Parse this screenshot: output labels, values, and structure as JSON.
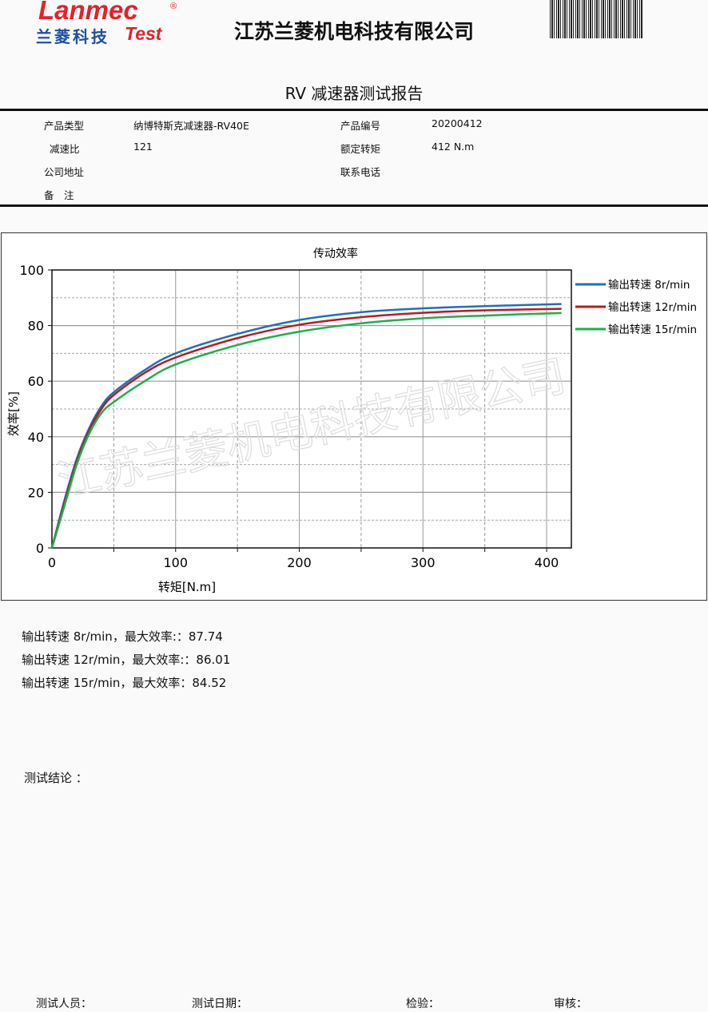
{
  "logo": {
    "brand": "Lanmec",
    "registered": "®",
    "cn": "兰菱科技",
    "test": "Test"
  },
  "header": {
    "company": "江苏兰菱机电科技有限公司",
    "report_title": "RV 减速器测试报告"
  },
  "info": [
    {
      "label": "产品类型",
      "value": "纳博特斯克减速器-RV40E",
      "label2": "产品编号",
      "value2": "20200412"
    },
    {
      "label": "减速比",
      "value": "121",
      "label2": "额定转矩",
      "value2": "412 N.m"
    },
    {
      "label": "公司地址",
      "value": "",
      "label2": "联系电话",
      "value2": ""
    },
    {
      "label": "备　注",
      "value": "",
      "label2": "",
      "value2": ""
    }
  ],
  "watermark": "江苏兰菱机电科技有限公司",
  "chart_data": {
    "type": "line",
    "title": "传动效率",
    "xlabel": "转矩[N.m]",
    "ylabel": "效率[%]",
    "xlim": [
      0,
      420
    ],
    "ylim": [
      0,
      100
    ],
    "xticks": [
      0,
      100,
      200,
      300,
      400
    ],
    "yticks": [
      0,
      20,
      40,
      60,
      80,
      100
    ],
    "grid": true,
    "legend": "top-right",
    "x": [
      0,
      10,
      20,
      30,
      40,
      50,
      75,
      100,
      150,
      200,
      250,
      300,
      350,
      412
    ],
    "series": [
      {
        "name": "输出转速 8r/min",
        "color": "#1f6fc0",
        "values": [
          0,
          17,
          32,
          43,
          51,
          56,
          64,
          70,
          77,
          82,
          84.8,
          86.2,
          87,
          87.74
        ]
      },
      {
        "name": "输出转速 12r/min",
        "color": "#c0161c",
        "values": [
          0,
          16,
          31,
          42,
          50,
          55,
          63,
          68.5,
          75.5,
          80.3,
          83,
          84.6,
          85.5,
          86.01
        ]
      },
      {
        "name": "输出转速 15r/min",
        "color": "#1fae4a",
        "values": [
          0,
          15,
          30,
          41,
          48.5,
          52.5,
          60,
          66,
          73,
          77.8,
          80.8,
          82.6,
          83.6,
          84.52
        ]
      }
    ]
  },
  "results": [
    "输出转速 8r/min，最大效率:：87.74",
    "输出转速 12r/min，最大效率:：86.01",
    "输出转速 15r/min，最大效率：84.52"
  ],
  "conclusion": "测试结论 ：",
  "footer": {
    "tester": "测试人员：",
    "date": "测试日期：",
    "inspect": "检验：",
    "review": "审核："
  }
}
